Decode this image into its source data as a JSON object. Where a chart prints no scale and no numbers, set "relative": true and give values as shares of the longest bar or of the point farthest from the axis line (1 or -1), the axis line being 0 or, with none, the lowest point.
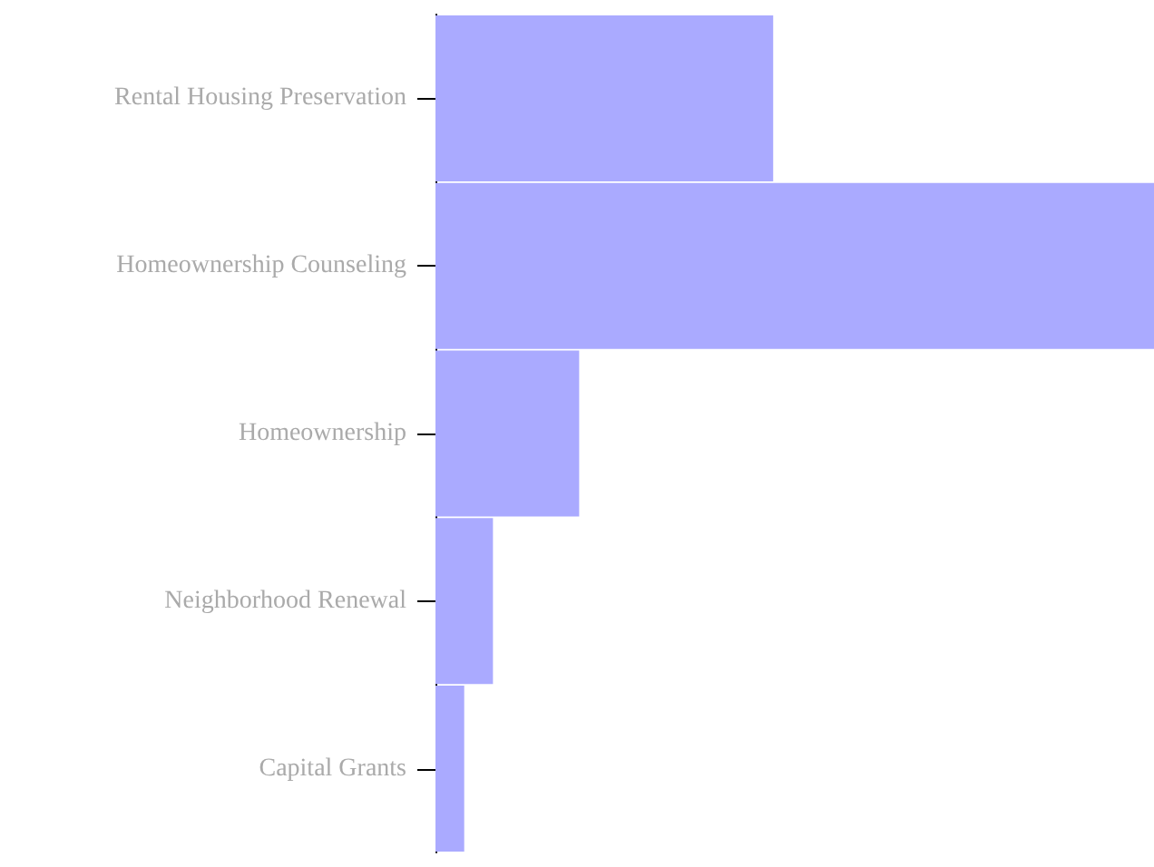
{
  "chart_data": {
    "type": "bar",
    "orientation": "horizontal",
    "relative": true,
    "categories": [
      "Rental Housing Preservation",
      "Homeownership Counseling",
      "Homeownership",
      "Neighborhood Renewal",
      "Capital Grants"
    ],
    "values": [
      0.47,
      1,
      0.2,
      0.08,
      0.04
    ],
    "color": "#aaaaff"
  }
}
